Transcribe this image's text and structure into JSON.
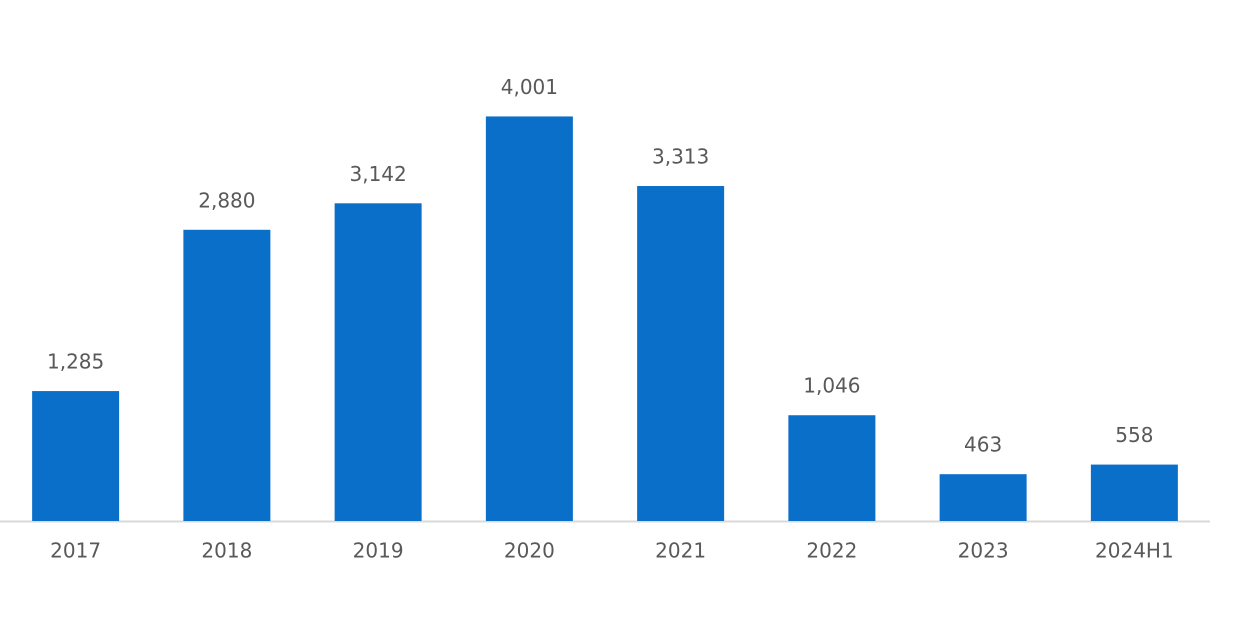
{
  "chart_data": {
    "type": "bar",
    "categories": [
      "2017",
      "2018",
      "2019",
      "2020",
      "2021",
      "2022",
      "2023",
      "2024H1"
    ],
    "values": [
      1285,
      2880,
      3142,
      4001,
      3313,
      1046,
      463,
      558
    ],
    "value_labels": [
      "1,285",
      "2,880",
      "3,142",
      "4,001",
      "3,313",
      "1,046",
      "463",
      "558"
    ],
    "color": "#0a6fc9",
    "ylim": [
      0,
      4500
    ]
  }
}
